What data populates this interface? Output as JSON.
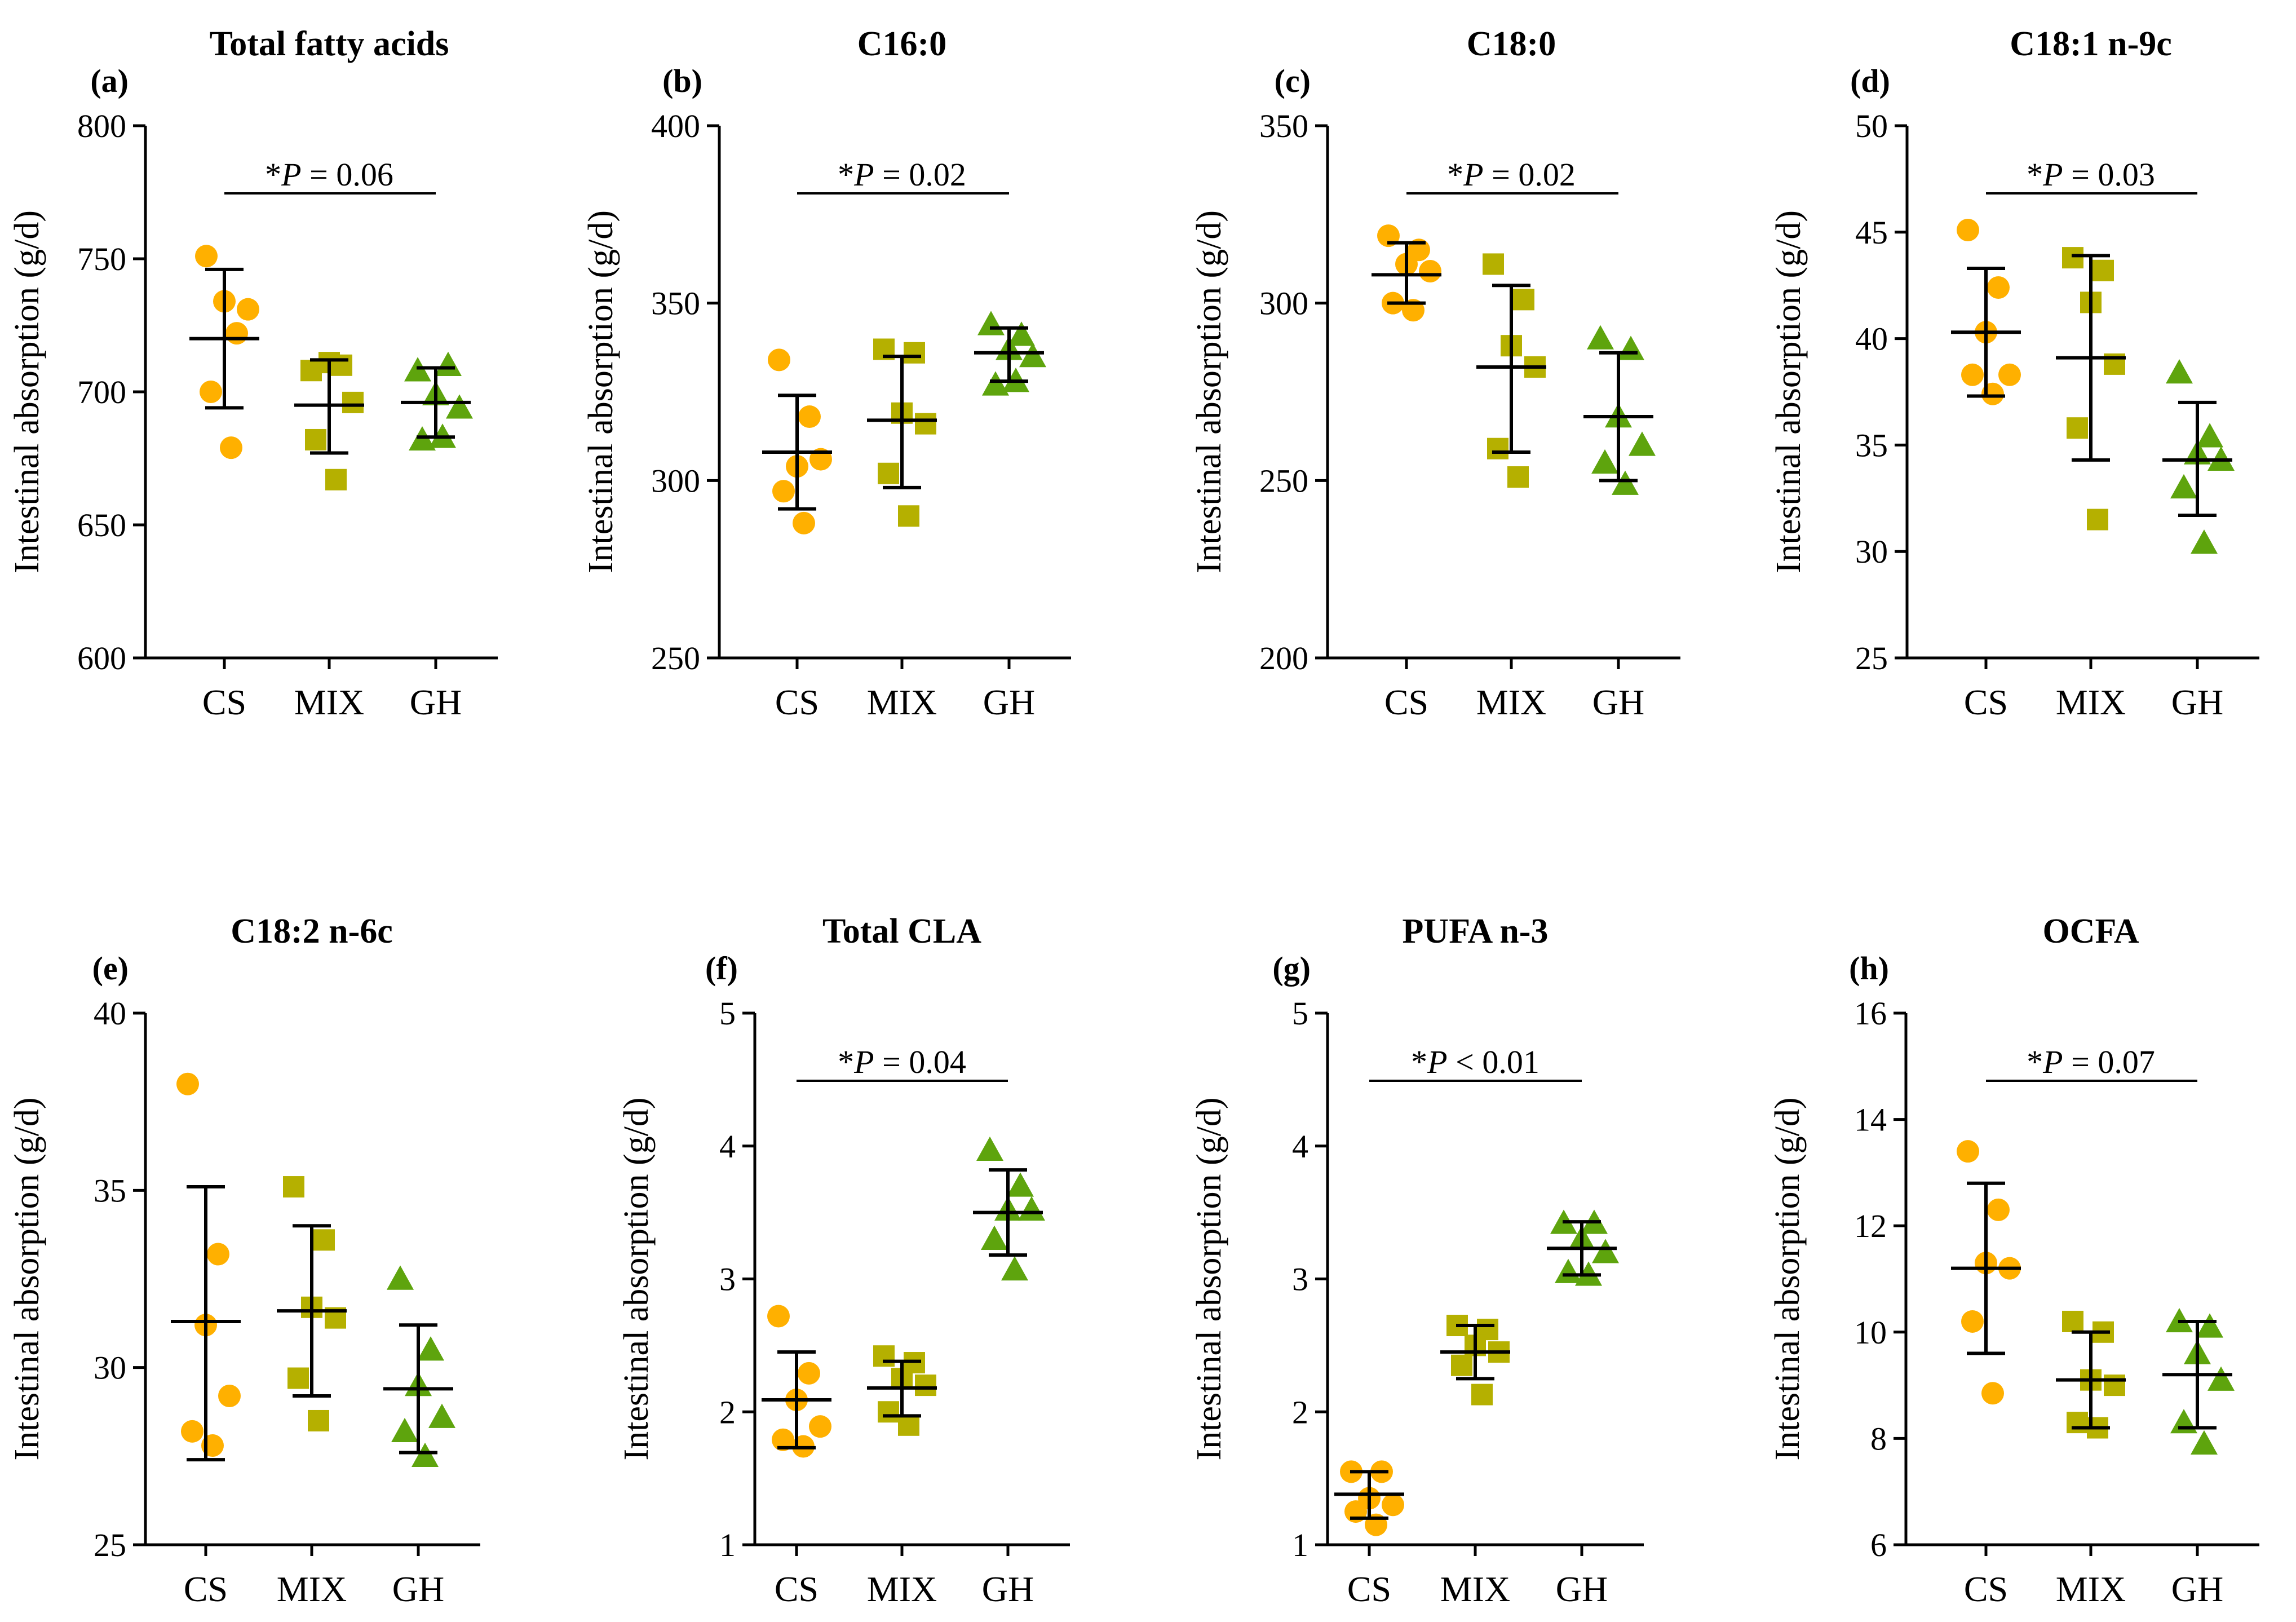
{
  "chart_data": [
    {
      "type": "scatter",
      "label": "(a)",
      "title": "Total fatty acids",
      "ylabel": "Intestinal absorption (g/d)",
      "xlabel": "",
      "categories": [
        "CS",
        "MIX",
        "GH"
      ],
      "ylim": [
        600,
        800
      ],
      "yticks": [
        600,
        650,
        700,
        750,
        800
      ],
      "groups": [
        {
          "name": "CS",
          "marker": "circle",
          "color": "#FFB000",
          "points": [
            751,
            722,
            734,
            731,
            700,
            679
          ],
          "mean": 720,
          "sd_low": 694,
          "sd_high": 746
        },
        {
          "name": "MIX",
          "marker": "square",
          "color": "#B5B000",
          "points": [
            708,
            710,
            711,
            696,
            682,
            667
          ],
          "mean": 695,
          "sd_low": 677,
          "sd_high": 712
        },
        {
          "name": "GH",
          "marker": "triangle",
          "color": "#5EA40D",
          "points": [
            708,
            710,
            699,
            694,
            682,
            683
          ],
          "mean": 696,
          "sd_low": 683,
          "sd_high": 709
        }
      ],
      "annotation": {
        "prefix": "*",
        "italic": "P",
        "suffix": " = 0.06"
      }
    },
    {
      "type": "scatter",
      "label": "(b)",
      "title": "C16:0",
      "ylabel": "Intestinal absorption (g/d)",
      "xlabel": "",
      "categories": [
        "CS",
        "MIX",
        "GH"
      ],
      "ylim": [
        250,
        400
      ],
      "yticks": [
        250,
        300,
        350,
        400
      ],
      "groups": [
        {
          "name": "CS",
          "marker": "circle",
          "color": "#FFB000",
          "points": [
            334,
            318,
            304,
            306,
            297,
            288
          ],
          "mean": 308,
          "sd_low": 292,
          "sd_high": 324
        },
        {
          "name": "MIX",
          "marker": "square",
          "color": "#B5B000",
          "points": [
            337,
            336,
            319,
            316,
            302,
            290
          ],
          "mean": 317,
          "sd_low": 298,
          "sd_high": 335
        },
        {
          "name": "GH",
          "marker": "triangle",
          "color": "#5EA40D",
          "points": [
            344,
            341,
            337,
            335,
            327,
            328
          ],
          "mean": 336,
          "sd_low": 328,
          "sd_high": 343
        }
      ],
      "annotation": {
        "prefix": "*",
        "italic": "P",
        "suffix": " = 0.02"
      }
    },
    {
      "type": "scatter",
      "label": "(c)",
      "title": "C18:0",
      "ylabel": "Intestinal absorption (g/d)",
      "xlabel": "",
      "categories": [
        "CS",
        "MIX",
        "GH"
      ],
      "ylim": [
        200,
        350
      ],
      "yticks": [
        200,
        250,
        300,
        350
      ],
      "groups": [
        {
          "name": "CS",
          "marker": "circle",
          "color": "#FFB000",
          "points": [
            319,
            315,
            311,
            309,
            300,
            298
          ],
          "mean": 308,
          "sd_low": 300,
          "sd_high": 317
        },
        {
          "name": "MIX",
          "marker": "square",
          "color": "#B5B000",
          "points": [
            311,
            301,
            288,
            282,
            259,
            251
          ],
          "mean": 282,
          "sd_low": 258,
          "sd_high": 305
        },
        {
          "name": "GH",
          "marker": "triangle",
          "color": "#5EA40D",
          "points": [
            290,
            287,
            268,
            260,
            255,
            249
          ],
          "mean": 268,
          "sd_low": 250,
          "sd_high": 286
        }
      ],
      "annotation": {
        "prefix": "*",
        "italic": "P",
        "suffix": " = 0.02"
      }
    },
    {
      "type": "scatter",
      "label": "(d)",
      "title": "C18:1 n-9c",
      "ylabel": "Intestinal absorption (g/d)",
      "xlabel": "",
      "categories": [
        "CS",
        "MIX",
        "GH"
      ],
      "ylim": [
        25,
        50
      ],
      "yticks": [
        25,
        30,
        35,
        40,
        45,
        50
      ],
      "groups": [
        {
          "name": "CS",
          "marker": "circle",
          "color": "#FFB000",
          "points": [
            45.1,
            42.4,
            40.3,
            38.3,
            38.3,
            37.4
          ],
          "mean": 40.3,
          "sd_low": 37.3,
          "sd_high": 43.3
        },
        {
          "name": "MIX",
          "marker": "square",
          "color": "#B5B000",
          "points": [
            43.8,
            43.2,
            41.7,
            38.8,
            35.8,
            31.5
          ],
          "mean": 39.1,
          "sd_low": 34.3,
          "sd_high": 43.9
        },
        {
          "name": "GH",
          "marker": "triangle",
          "color": "#5EA40D",
          "points": [
            38.4,
            35.4,
            34.6,
            34.3,
            33.0,
            30.4
          ],
          "mean": 34.3,
          "sd_low": 31.7,
          "sd_high": 37.0
        }
      ],
      "annotation": {
        "prefix": "*",
        "italic": "P",
        "suffix": " = 0.03"
      }
    },
    {
      "type": "scatter",
      "label": "(e)",
      "title": "C18:2 n-6c",
      "ylabel": "Intestinal absorption (g/d)",
      "xlabel": "",
      "categories": [
        "CS",
        "MIX",
        "GH"
      ],
      "ylim": [
        25,
        40
      ],
      "yticks": [
        25,
        30,
        35,
        40
      ],
      "groups": [
        {
          "name": "CS",
          "marker": "circle",
          "color": "#FFB000",
          "points": [
            38.0,
            33.2,
            31.2,
            29.2,
            28.2,
            27.8
          ],
          "mean": 31.3,
          "sd_low": 27.4,
          "sd_high": 35.1
        },
        {
          "name": "MIX",
          "marker": "square",
          "color": "#B5B000",
          "points": [
            35.1,
            33.6,
            31.7,
            31.4,
            29.7,
            28.5
          ],
          "mean": 31.6,
          "sd_low": 29.2,
          "sd_high": 34.0
        },
        {
          "name": "GH",
          "marker": "triangle",
          "color": "#5EA40D",
          "points": [
            32.5,
            30.5,
            29.5,
            28.6,
            28.2,
            27.5
          ],
          "mean": 29.4,
          "sd_low": 27.6,
          "sd_high": 31.2
        }
      ],
      "annotation": null
    },
    {
      "type": "scatter",
      "label": "(f)",
      "title": "Total CLA",
      "ylabel": "Intestinal absorption (g/d)",
      "xlabel": "",
      "categories": [
        "CS",
        "MIX",
        "GH"
      ],
      "ylim": [
        1,
        5
      ],
      "yticks": [
        1,
        2,
        3,
        4,
        5
      ],
      "groups": [
        {
          "name": "CS",
          "marker": "circle",
          "color": "#FFB000",
          "points": [
            2.72,
            2.29,
            2.09,
            1.89,
            1.79,
            1.74
          ],
          "mean": 2.09,
          "sd_low": 1.73,
          "sd_high": 2.45
        },
        {
          "name": "MIX",
          "marker": "square",
          "color": "#B5B000",
          "points": [
            2.42,
            2.37,
            2.25,
            2.2,
            2.0,
            1.9
          ],
          "mean": 2.18,
          "sd_low": 1.97,
          "sd_high": 2.38
        },
        {
          "name": "GH",
          "marker": "triangle",
          "color": "#5EA40D",
          "points": [
            3.97,
            3.7,
            3.52,
            3.52,
            3.3,
            3.07
          ],
          "mean": 3.5,
          "sd_low": 3.18,
          "sd_high": 3.82
        }
      ],
      "annotation": {
        "prefix": "*",
        "italic": "P",
        "suffix": " = 0.04"
      }
    },
    {
      "type": "scatter",
      "label": "(g)",
      "title": "PUFA n-3",
      "ylabel": "Intestinal absorption (g/d)",
      "xlabel": "",
      "categories": [
        "CS",
        "MIX",
        "GH"
      ],
      "ylim": [
        1,
        5
      ],
      "yticks": [
        1,
        2,
        3,
        4,
        5
      ],
      "groups": [
        {
          "name": "CS",
          "marker": "circle",
          "color": "#FFB000",
          "points": [
            1.55,
            1.55,
            1.35,
            1.3,
            1.25,
            1.15
          ],
          "mean": 1.38,
          "sd_low": 1.2,
          "sd_high": 1.55
        },
        {
          "name": "MIX",
          "marker": "square",
          "color": "#B5B000",
          "points": [
            2.65,
            2.62,
            2.5,
            2.45,
            2.35,
            2.13
          ],
          "mean": 2.45,
          "sd_low": 2.25,
          "sd_high": 2.65
        },
        {
          "name": "GH",
          "marker": "triangle",
          "color": "#5EA40D",
          "points": [
            3.42,
            3.42,
            3.3,
            3.2,
            3.05,
            3.03
          ],
          "mean": 3.23,
          "sd_low": 3.03,
          "sd_high": 3.43
        }
      ],
      "annotation": {
        "prefix": "*",
        "italic": "P",
        "suffix": " < 0.01"
      }
    },
    {
      "type": "scatter",
      "label": "(h)",
      "title": "OCFA",
      "ylabel": "Intestinal absorption (g/d)",
      "xlabel": "",
      "categories": [
        "CS",
        "MIX",
        "GH"
      ],
      "ylim": [
        6,
        16
      ],
      "yticks": [
        6,
        8,
        10,
        12,
        14,
        16
      ],
      "groups": [
        {
          "name": "CS",
          "marker": "circle",
          "color": "#FFB000",
          "points": [
            13.4,
            12.3,
            11.3,
            11.2,
            10.2,
            8.85
          ],
          "mean": 11.2,
          "sd_low": 9.6,
          "sd_high": 12.8
        },
        {
          "name": "MIX",
          "marker": "square",
          "color": "#B5B000",
          "points": [
            10.2,
            10.0,
            9.1,
            9.0,
            8.3,
            8.2
          ],
          "mean": 9.1,
          "sd_low": 8.2,
          "sd_high": 10.0
        },
        {
          "name": "GH",
          "marker": "triangle",
          "color": "#5EA40D",
          "points": [
            10.2,
            10.1,
            9.6,
            9.1,
            8.3,
            7.9
          ],
          "mean": 9.2,
          "sd_low": 8.2,
          "sd_high": 10.2
        }
      ],
      "annotation": {
        "prefix": "*",
        "italic": "P",
        "suffix": " = 0.07"
      }
    }
  ]
}
